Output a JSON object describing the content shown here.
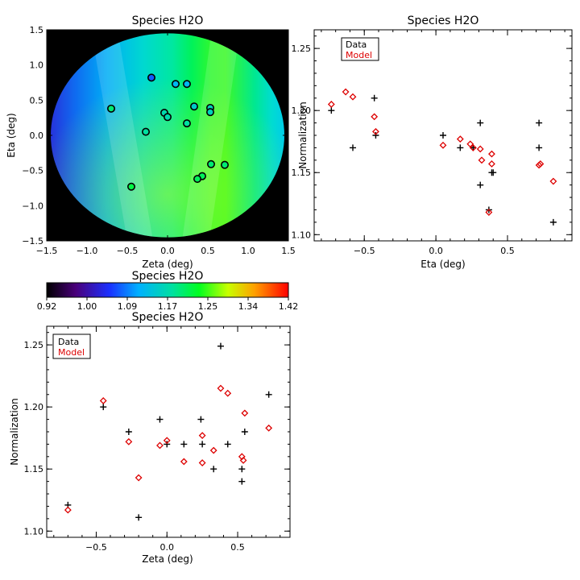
{
  "chart_data": [
    {
      "type": "map",
      "title": "Species H2O",
      "xlabel": "Zeta (deg)",
      "ylabel": "Eta (deg)",
      "xlim": [
        -1.5,
        1.5
      ],
      "ylim": [
        -1.5,
        1.5
      ],
      "xticks": [
        -1.5,
        -1.0,
        -0.5,
        0.0,
        0.5,
        1.0,
        1.5
      ],
      "xtick_labels": [
        "−1.5",
        "−1.0",
        "−0.5",
        "0.0",
        "0.5",
        "1.0",
        "1.5"
      ],
      "yticks": [
        -1.5,
        -1.0,
        -0.5,
        0.0,
        0.5,
        1.0,
        1.5
      ],
      "ytick_labels": [
        "−1.5",
        "−1.0",
        "−0.5",
        "0.0",
        "0.5",
        "1.0",
        "1.5"
      ],
      "field_radius": 1.45,
      "points": [
        {
          "zeta": -0.2,
          "eta": 0.82,
          "value": 1.07
        },
        {
          "zeta": -0.7,
          "eta": 0.38,
          "value": 1.2
        },
        {
          "zeta": 0.1,
          "eta": 0.73,
          "value": 1.12
        },
        {
          "zeta": 0.24,
          "eta": 0.73,
          "value": 1.12
        },
        {
          "zeta": 0.33,
          "eta": 0.41,
          "value": 1.15
        },
        {
          "zeta": 0.53,
          "eta": 0.39,
          "value": 1.16
        },
        {
          "zeta": 0.53,
          "eta": 0.33,
          "value": 1.16
        },
        {
          "zeta": -0.04,
          "eta": 0.32,
          "value": 1.17
        },
        {
          "zeta": 0.0,
          "eta": 0.26,
          "value": 1.17
        },
        {
          "zeta": 0.24,
          "eta": 0.17,
          "value": 1.18
        },
        {
          "zeta": -0.27,
          "eta": 0.05,
          "value": 1.18
        },
        {
          "zeta": 0.54,
          "eta": -0.41,
          "value": 1.2
        },
        {
          "zeta": 0.71,
          "eta": -0.42,
          "value": 1.2
        },
        {
          "zeta": 0.43,
          "eta": -0.58,
          "value": 1.21
        },
        {
          "zeta": 0.37,
          "eta": -0.62,
          "value": 1.21
        },
        {
          "zeta": -0.45,
          "eta": -0.73,
          "value": 1.22
        }
      ]
    },
    {
      "type": "colorbar",
      "title": "Species H2O",
      "range": [
        0.92,
        1.42
      ],
      "tick_labels": [
        "0.92",
        "1.00",
        "1.09",
        "1.17",
        "1.25",
        "1.34",
        "1.42"
      ]
    },
    {
      "type": "scatter",
      "title": "Species H2O",
      "xlabel": "Eta (deg)",
      "ylabel": "Normalization",
      "xlim": [
        -0.85,
        0.95
      ],
      "ylim": [
        1.095,
        1.265
      ],
      "xticks": [
        -0.5,
        0.0,
        0.5
      ],
      "xtick_labels": [
        "−0.5",
        "0.0",
        "0.5"
      ],
      "yticks": [
        1.1,
        1.15,
        1.2,
        1.25
      ],
      "ytick_labels": [
        "1.10",
        "1.15",
        "1.20",
        "1.25"
      ],
      "legend": [
        "Data",
        "Model"
      ],
      "legend_position": "top-left",
      "series": [
        {
          "name": "Data",
          "color": "#000000",
          "marker": "plus",
          "x": [
            -0.73,
            -0.58,
            -0.43,
            -0.42,
            0.05,
            0.17,
            0.26,
            0.31,
            0.31,
            0.37,
            0.39,
            0.4,
            0.72,
            0.72,
            0.82
          ],
          "y": [
            1.2,
            1.17,
            1.21,
            1.18,
            1.18,
            1.17,
            1.17,
            1.19,
            1.14,
            1.12,
            1.15,
            1.15,
            1.19,
            1.17,
            1.11
          ]
        },
        {
          "name": "Model",
          "color": "#dd0000",
          "marker": "diamond",
          "x": [
            -0.73,
            -0.63,
            -0.58,
            -0.43,
            -0.42,
            0.05,
            0.17,
            0.24,
            0.26,
            0.31,
            0.32,
            0.37,
            0.39,
            0.39,
            0.72,
            0.73,
            0.82
          ],
          "y": [
            1.205,
            1.215,
            1.211,
            1.195,
            1.183,
            1.172,
            1.177,
            1.173,
            1.17,
            1.169,
            1.16,
            1.118,
            1.165,
            1.157,
            1.156,
            1.157,
            1.143
          ]
        }
      ]
    },
    {
      "type": "scatter",
      "title": "Species H2O",
      "xlabel": "Zeta (deg)",
      "ylabel": "Normalization",
      "xlim": [
        -0.85,
        0.87
      ],
      "ylim": [
        1.095,
        1.265
      ],
      "xticks": [
        -0.5,
        0.0,
        0.5
      ],
      "xtick_labels": [
        "−0.5",
        "0.0",
        "0.5"
      ],
      "yticks": [
        1.1,
        1.15,
        1.2,
        1.25
      ],
      "ytick_labels": [
        "1.10",
        "1.15",
        "1.20",
        "1.25"
      ],
      "legend": [
        "Data",
        "Model"
      ],
      "legend_position": "top-left",
      "series": [
        {
          "name": "Data",
          "color": "#000000",
          "marker": "plus",
          "x": [
            -0.7,
            -0.45,
            -0.27,
            -0.2,
            -0.05,
            0.0,
            0.12,
            0.24,
            0.25,
            0.33,
            0.38,
            0.43,
            0.53,
            0.53,
            0.55,
            0.72
          ],
          "y": [
            1.121,
            1.2,
            1.18,
            1.111,
            1.19,
            1.17,
            1.17,
            1.19,
            1.17,
            1.15,
            1.249,
            1.17,
            1.15,
            1.14,
            1.18,
            1.21
          ]
        },
        {
          "name": "Model",
          "color": "#dd0000",
          "marker": "diamond",
          "x": [
            -0.7,
            -0.45,
            -0.27,
            -0.2,
            -0.05,
            0.0,
            0.12,
            0.25,
            0.25,
            0.33,
            0.38,
            0.43,
            0.53,
            0.54,
            0.55,
            0.72
          ],
          "y": [
            1.117,
            1.205,
            1.172,
            1.143,
            1.169,
            1.173,
            1.156,
            1.177,
            1.155,
            1.165,
            1.215,
            1.211,
            1.16,
            1.157,
            1.195,
            1.183
          ]
        }
      ]
    }
  ]
}
